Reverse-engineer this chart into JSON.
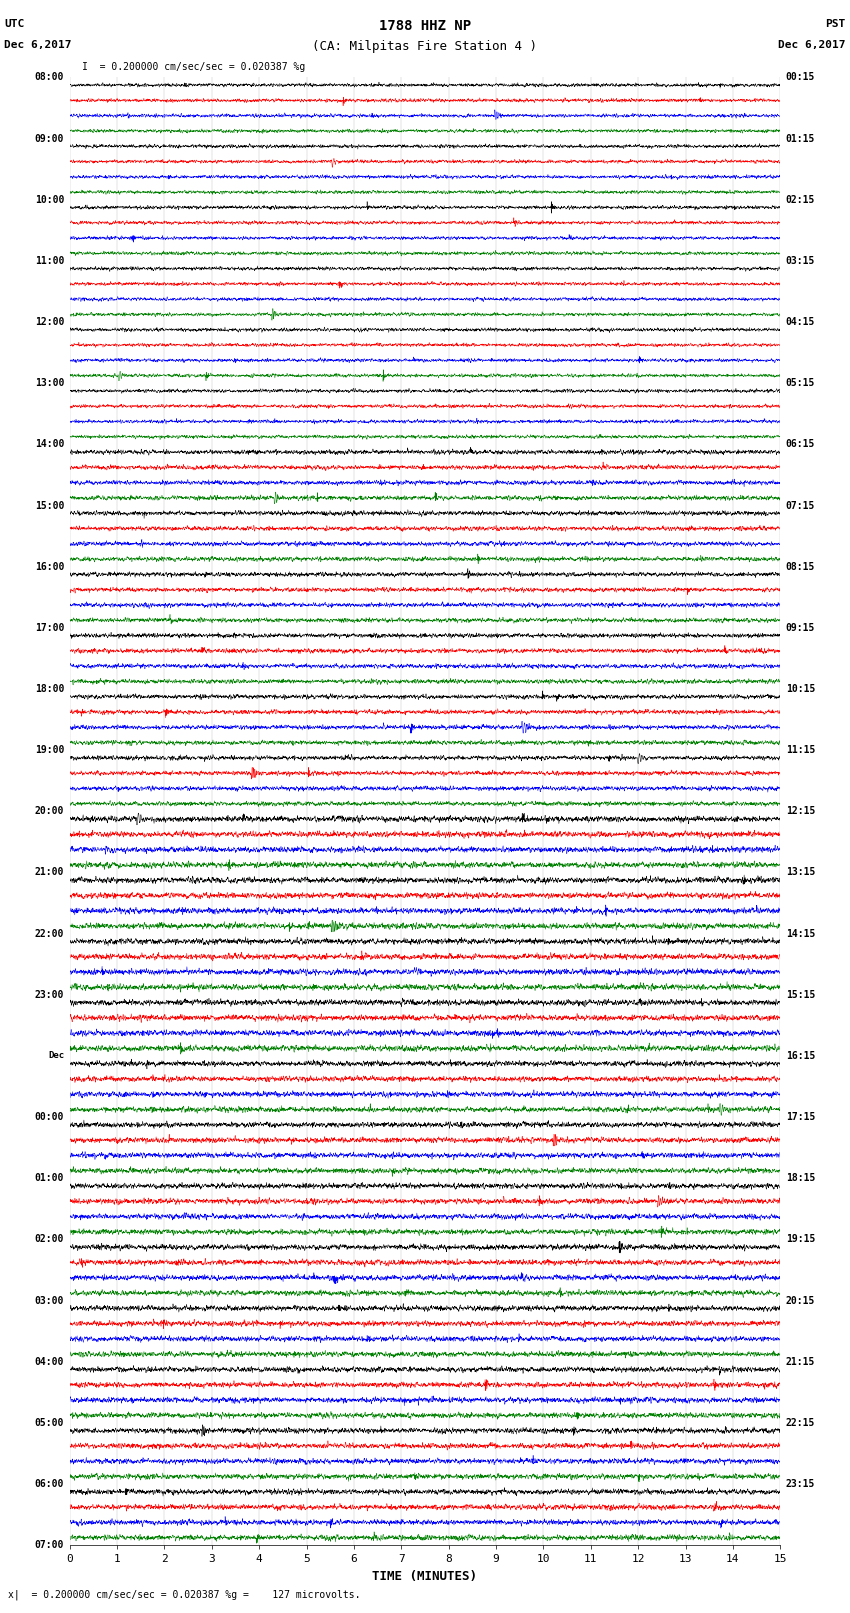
{
  "title_line1": "1788 HHZ NP",
  "title_line2": "(CA: Milpitas Fire Station 4 )",
  "scale_text": "= 0.200000 cm/sec/sec = 0.020387 %g",
  "bottom_note": "= 0.200000 cm/sec/sec = 0.020387 %g =    127 microvolts.",
  "xlabel": "TIME (MINUTES)",
  "xlim": [
    0,
    15
  ],
  "xticks": [
    0,
    1,
    2,
    3,
    4,
    5,
    6,
    7,
    8,
    9,
    10,
    11,
    12,
    13,
    14,
    15
  ],
  "colors": [
    "black",
    "red",
    "blue",
    "green"
  ],
  "left_times": [
    "08:00",
    "09:00",
    "10:00",
    "11:00",
    "12:00",
    "13:00",
    "14:00",
    "15:00",
    "16:00",
    "17:00",
    "18:00",
    "19:00",
    "20:00",
    "21:00",
    "22:00",
    "23:00",
    "Dec",
    "00:00",
    "01:00",
    "02:00",
    "03:00",
    "04:00",
    "05:00",
    "06:00",
    "07:00"
  ],
  "right_times": [
    "00:15",
    "01:15",
    "02:15",
    "03:15",
    "04:15",
    "05:15",
    "06:15",
    "07:15",
    "08:15",
    "09:15",
    "10:15",
    "11:15",
    "12:15",
    "13:15",
    "14:15",
    "15:15",
    "16:15",
    "17:15",
    "18:15",
    "19:15",
    "20:15",
    "21:15",
    "22:15",
    "23:15"
  ],
  "n_hours": 24,
  "traces_per_hour": 4,
  "noise_seed": 42,
  "background_color": "white",
  "trace_amplitude": 0.38,
  "base_noise": 0.12,
  "lw": 0.35
}
